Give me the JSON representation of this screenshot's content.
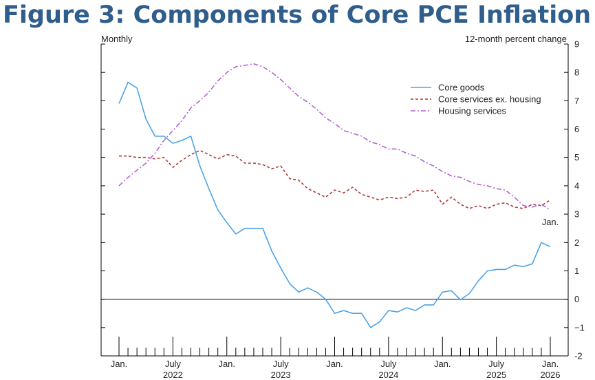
{
  "title": "Figure 3: Components of Core PCE Inflation",
  "chart_data": {
    "type": "line",
    "left_unit_label": "Monthly",
    "right_unit_label": "12-month percent change",
    "ylim": [
      -2,
      9
    ],
    "yticks": [
      "-2",
      "−1",
      "0",
      "1",
      "2",
      "3",
      "4",
      "5",
      "6",
      "7",
      "8",
      "9"
    ],
    "ytick_values": [
      -2,
      -1,
      0,
      1,
      2,
      3,
      4,
      5,
      6,
      7,
      8,
      9
    ],
    "x_start": "2022-01",
    "x_end": "2026-01",
    "x_month_labels": [
      {
        "month": 0,
        "label": "Jan."
      },
      {
        "month": 6,
        "label": "July"
      },
      {
        "month": 12,
        "label": "Jan."
      },
      {
        "month": 18,
        "label": "July"
      },
      {
        "month": 24,
        "label": "Jan."
      },
      {
        "month": 30,
        "label": "July"
      },
      {
        "month": 36,
        "label": "Jan."
      },
      {
        "month": 42,
        "label": "July"
      },
      {
        "month": 48,
        "label": "Jan."
      }
    ],
    "x_year_labels": [
      {
        "month": 6,
        "label": "2022"
      },
      {
        "month": 18,
        "label": "2023"
      },
      {
        "month": 30,
        "label": "2024"
      },
      {
        "month": 42,
        "label": "2025"
      },
      {
        "month": 48,
        "label": "2026"
      }
    ],
    "legend_position": "top-right",
    "annotation": "Jan.",
    "zero_line": true,
    "series": [
      {
        "name": "Core goods",
        "color": "#4aa3e8",
        "style": "solid",
        "values": [
          6.9,
          7.65,
          7.45,
          6.35,
          5.75,
          5.75,
          5.5,
          5.6,
          5.75,
          4.7,
          3.9,
          3.15,
          2.7,
          2.3,
          2.5,
          2.5,
          2.5,
          1.7,
          1.1,
          0.55,
          0.25,
          0.4,
          0.25,
          0.0,
          -0.5,
          -0.4,
          -0.5,
          -0.5,
          -1.0,
          -0.8,
          -0.4,
          -0.45,
          -0.3,
          -0.4,
          -0.2,
          -0.2,
          0.25,
          0.3,
          -0.02,
          0.2,
          0.65,
          1.0,
          1.05,
          1.05,
          1.2,
          1.15,
          1.25,
          2.0,
          1.85
        ]
      },
      {
        "name": "Core services ex. housing",
        "color": "#b03a3a",
        "style": "dashed",
        "values": [
          5.05,
          5.05,
          5.0,
          5.0,
          4.95,
          5.0,
          4.65,
          4.9,
          5.1,
          5.25,
          5.1,
          4.95,
          5.1,
          5.05,
          4.8,
          4.8,
          4.75,
          4.6,
          4.7,
          4.25,
          4.2,
          3.9,
          3.75,
          3.6,
          3.85,
          3.75,
          3.95,
          3.7,
          3.6,
          3.5,
          3.6,
          3.55,
          3.6,
          3.85,
          3.8,
          3.85,
          3.35,
          3.6,
          3.35,
          3.2,
          3.3,
          3.2,
          3.35,
          3.4,
          3.25,
          3.2,
          3.35,
          3.3,
          3.5
        ]
      },
      {
        "name": "Housing services",
        "color": "#b463d6",
        "style": "dashdot",
        "values": [
          4.0,
          4.3,
          4.55,
          4.8,
          5.15,
          5.6,
          5.95,
          6.3,
          6.75,
          7.0,
          7.3,
          7.7,
          8.0,
          8.2,
          8.25,
          8.3,
          8.2,
          8.0,
          7.75,
          7.45,
          7.15,
          6.95,
          6.7,
          6.4,
          6.2,
          5.95,
          5.85,
          5.75,
          5.55,
          5.45,
          5.3,
          5.3,
          5.15,
          5.05,
          4.85,
          4.7,
          4.5,
          4.35,
          4.3,
          4.15,
          4.05,
          4.0,
          3.9,
          3.85,
          3.6,
          3.3,
          3.25,
          3.35,
          3.15
        ]
      }
    ]
  }
}
